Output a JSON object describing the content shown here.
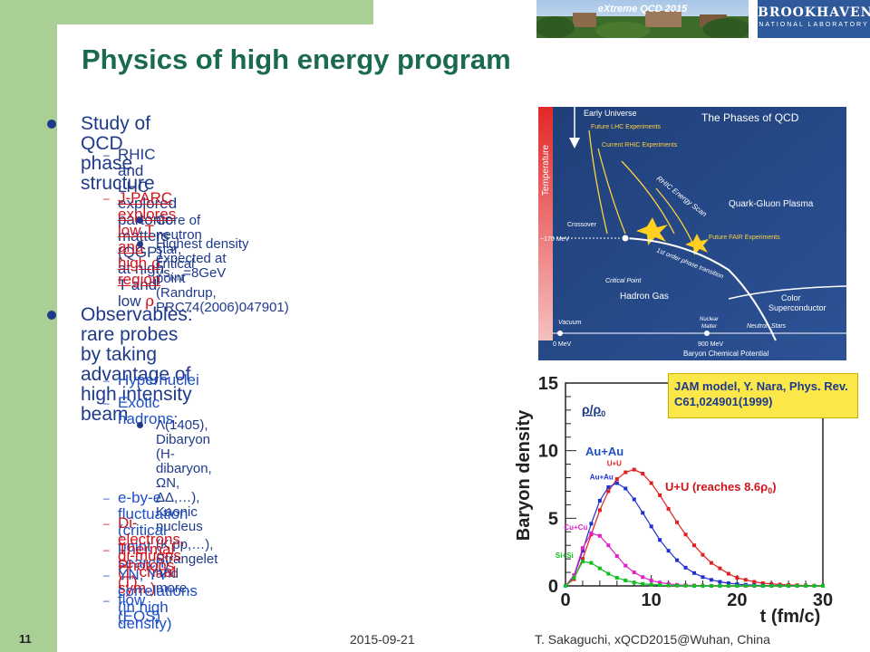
{
  "banner": {
    "title": "eXtreme QCD 2015"
  },
  "logo": {
    "line1": "BROOKHAVEN",
    "line2": "NATIONAL LABORATORY"
  },
  "slide": {
    "title": "Physics of high energy program"
  },
  "bullets": {
    "b1": "Study of QCD phase structure",
    "b1_1a": "RHIC and LHC explored partonic matters",
    "b1_1b_pre": "(QGP) at high T and low ",
    "b1_2_pre": "J-PARC explores low T and high ",
    "b1_2_post": " region",
    "b1_2_1": "Core of neutron star, critical point",
    "b1_2_2a_pre": "Highest density expected at ",
    "b1_2_2a_sqrt": "√",
    "b1_2_2a_s": "s",
    "b1_2_2a_sub": "NN",
    "b1_2_2a_post": "=8GeV",
    "b1_2_2b": "(Randrup, PRC74(2006)047901)",
    "b2a": "Observables:   rare probes by taking",
    "b2b": "advantage of high intensity beam",
    "b2_1": "Hypernuclei",
    "b2_2": "Exotic hadrons",
    "b2_2_colon": ":",
    "b2_2_1a": "Λ(1405), Dibaryon (H-dibaryon, ΩN,",
    "b2_2_1b_pre": "ΔΔ,…), Kaonic nucleus (K",
    "b2_2_1b_sup": "-",
    "b2_2_1b_post": "pp,…),",
    "b2_2_1c": "Strangelet and more..",
    "b2_3": "e-by-e fluctuation (critical point search)",
    "b2_4": "Di-electrons, di-muons (T, chiral sym.)",
    "b2_5": "Thermal Photons (T)",
    "b2_6": "YN, YY correlations (in high density)",
    "b2_7": "flow (EOS)",
    "rho": "ρ"
  },
  "qcd_figure": {
    "title": "The Phases of QCD",
    "temperature": "Temperature",
    "early_universe": "Early Universe",
    "future_lhc": "Future LHC Experiments",
    "current_rhic": "Current RHIC Experiments",
    "rhic_scan": "RHIC Energy Scan",
    "qgp": "Quark-Gluon Plasma",
    "crossover": "Crossover",
    "t170": "~170 MeV",
    "first_order": "1st order phase transition",
    "future_fair": "Future FAIR Experiments",
    "critical_point": "Critical Point",
    "hadron_gas": "Hadron Gas",
    "color_sc_1": "Color",
    "color_sc_2": "Superconductor",
    "nuclear_matter_1": "Nuclear",
    "nuclear_matter_2": "Matter",
    "vacuum": "Vacuum",
    "neutron_stars": "Neutron Stars",
    "zero": "0 MeV",
    "mev900": "900 MeV",
    "baryon_pot": "Baryon Chemical Potential"
  },
  "jam_note": "JAM model, Y. Nara, Phys. Rev. C61,024901(1999)",
  "chart_data": {
    "type": "line",
    "xlabel": "t (fm/c)",
    "ylabel": "Baryon density",
    "xlim": [
      0,
      30
    ],
    "ylim": [
      0,
      15
    ],
    "xticks": [
      "0",
      "10",
      "20",
      "30"
    ],
    "yticks": [
      "0",
      "5",
      "10",
      "15"
    ],
    "annotations": {
      "rho_ratio": "ρ/ρ",
      "rho_ratio_sub": "0",
      "auau": "Au+Au",
      "uu_pre": "U+U (reaches 8.6ρ",
      "uu_sub": "0",
      "uu_post": ")"
    },
    "x": [
      0,
      1,
      2,
      3,
      4,
      5,
      6,
      7,
      8,
      9,
      10,
      11,
      12,
      13,
      14,
      15,
      16,
      17,
      18,
      19,
      20,
      21,
      22,
      23,
      24,
      25,
      26,
      27,
      28,
      29,
      30
    ],
    "series": [
      {
        "name": "U+U",
        "color": "#e02020",
        "values": [
          0,
          0.5,
          2.0,
          3.8,
          5.6,
          7.0,
          7.9,
          8.4,
          8.6,
          8.3,
          7.6,
          6.7,
          5.7,
          4.7,
          3.8,
          3.0,
          2.3,
          1.7,
          1.3,
          0.9,
          0.6,
          0.45,
          0.3,
          0.2,
          0.15,
          0.1,
          0.07,
          0.05,
          0.03,
          0.02,
          0.01
        ]
      },
      {
        "name": "Au+Au",
        "color": "#2030d0",
        "values": [
          0,
          0.7,
          2.6,
          4.6,
          6.3,
          7.3,
          7.6,
          7.2,
          6.4,
          5.4,
          4.4,
          3.4,
          2.6,
          1.9,
          1.35,
          0.95,
          0.65,
          0.45,
          0.3,
          0.2,
          0.13,
          0.08,
          0.05,
          0.03,
          0.02,
          0.01,
          0,
          0,
          0,
          0,
          0
        ]
      },
      {
        "name": "Cu+Cu",
        "color": "#e020c8",
        "values": [
          0,
          0.8,
          2.8,
          3.9,
          3.7,
          3.0,
          2.2,
          1.5,
          1.0,
          0.65,
          0.4,
          0.25,
          0.15,
          0.08,
          0.05,
          0.03,
          0.02,
          0.01,
          0,
          0,
          0,
          0,
          0,
          0,
          0,
          0,
          0,
          0,
          0,
          0,
          0
        ]
      },
      {
        "name": "Si+Si",
        "color": "#10c020",
        "values": [
          0,
          0.6,
          1.8,
          1.7,
          1.3,
          0.9,
          0.6,
          0.4,
          0.25,
          0.15,
          0.1,
          0.06,
          0.03,
          0.02,
          0.01,
          0,
          0,
          0,
          0,
          0,
          0,
          0,
          0,
          0,
          0,
          0,
          0,
          0,
          0,
          0,
          0
        ]
      }
    ]
  },
  "footer": {
    "page": "11",
    "date": "2015-09-21",
    "author": "T. Sakaguchi, xQCD2015@Wuhan, China"
  }
}
